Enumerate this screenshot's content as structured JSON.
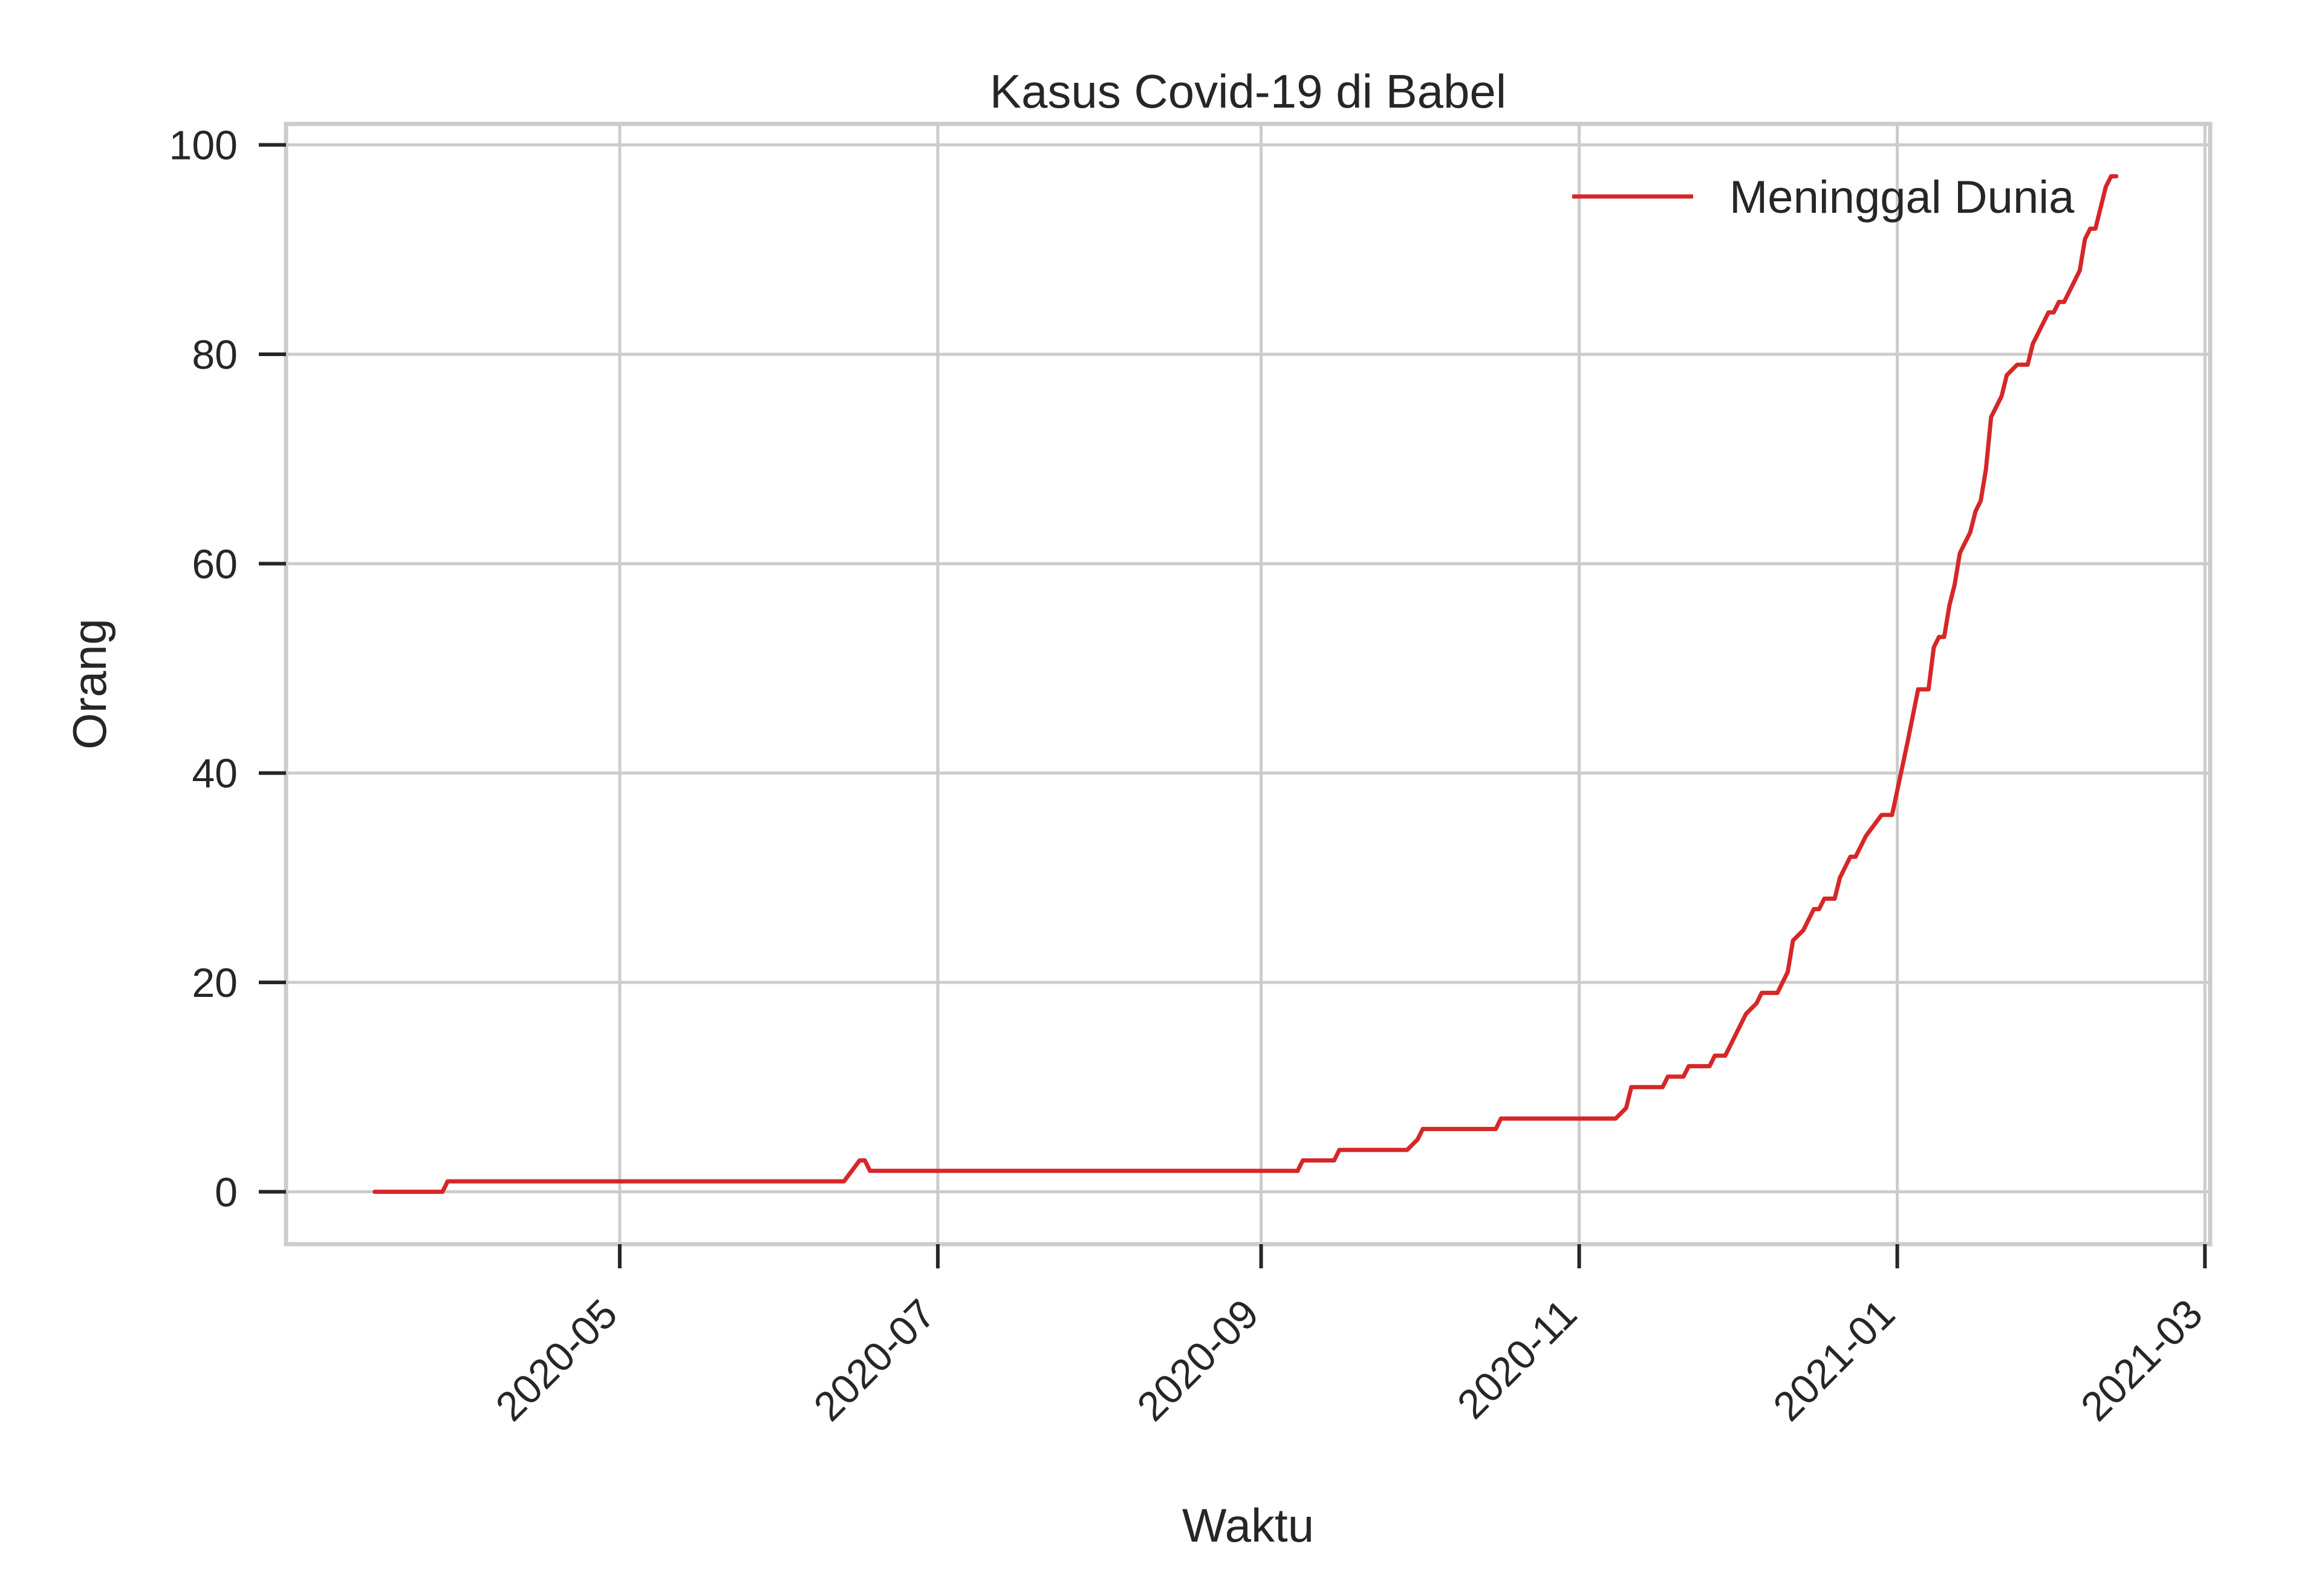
{
  "chart_data": {
    "type": "line",
    "title": "Kasus Covid-19 di Babel",
    "xlabel": "Waktu",
    "ylabel": "Orang",
    "xlim": [
      "2020-02-27",
      "2021-03-02"
    ],
    "ylim": [
      -5,
      102
    ],
    "x_ticks": [
      "2020-05-01",
      "2020-07-01",
      "2020-09-01",
      "2020-11-01",
      "2021-01-01",
      "2021-03-01"
    ],
    "x_tick_labels": [
      "2020-05",
      "2020-07",
      "2020-09",
      "2020-11",
      "2021-01",
      "2021-03"
    ],
    "y_ticks": [
      0,
      20,
      40,
      60,
      80,
      100
    ],
    "grid": true,
    "legend_position": "top-right",
    "series": [
      {
        "name": "Meninggal Dunia",
        "color": "#d62728",
        "points": [
          [
            "2020-03-15",
            0
          ],
          [
            "2020-03-28",
            0
          ],
          [
            "2020-03-29",
            1
          ],
          [
            "2020-06-13",
            1
          ],
          [
            "2020-06-16",
            3
          ],
          [
            "2020-06-17",
            3
          ],
          [
            "2020-06-18",
            2
          ],
          [
            "2020-09-08",
            2
          ],
          [
            "2020-09-09",
            3
          ],
          [
            "2020-09-15",
            3
          ],
          [
            "2020-09-16",
            4
          ],
          [
            "2020-09-29",
            4
          ],
          [
            "2020-10-01",
            5
          ],
          [
            "2020-10-02",
            6
          ],
          [
            "2020-10-16",
            6
          ],
          [
            "2020-10-17",
            7
          ],
          [
            "2020-11-08",
            7
          ],
          [
            "2020-11-10",
            8
          ],
          [
            "2020-11-11",
            10
          ],
          [
            "2020-11-17",
            10
          ],
          [
            "2020-11-18",
            11
          ],
          [
            "2020-11-21",
            11
          ],
          [
            "2020-11-22",
            12
          ],
          [
            "2020-11-26",
            12
          ],
          [
            "2020-11-27",
            13
          ],
          [
            "2020-11-29",
            13
          ],
          [
            "2020-11-30",
            14
          ],
          [
            "2020-12-01",
            15
          ],
          [
            "2020-12-03",
            17
          ],
          [
            "2020-12-05",
            18
          ],
          [
            "2020-12-06",
            19
          ],
          [
            "2020-12-09",
            19
          ],
          [
            "2020-12-10",
            20
          ],
          [
            "2020-12-11",
            21
          ],
          [
            "2020-12-12",
            24
          ],
          [
            "2020-12-14",
            25
          ],
          [
            "2020-12-16",
            27
          ],
          [
            "2020-12-17",
            27
          ],
          [
            "2020-12-18",
            28
          ],
          [
            "2020-12-20",
            28
          ],
          [
            "2020-12-21",
            30
          ],
          [
            "2020-12-23",
            32
          ],
          [
            "2020-12-24",
            32
          ],
          [
            "2020-12-26",
            34
          ],
          [
            "2020-12-29",
            36
          ],
          [
            "2020-12-31",
            36
          ],
          [
            "2021-01-03",
            43
          ],
          [
            "2021-01-05",
            48
          ],
          [
            "2021-01-07",
            48
          ],
          [
            "2021-01-08",
            52
          ],
          [
            "2021-01-09",
            53
          ],
          [
            "2021-01-10",
            53
          ],
          [
            "2021-01-11",
            56
          ],
          [
            "2021-01-12",
            58
          ],
          [
            "2021-01-13",
            61
          ],
          [
            "2021-01-15",
            63
          ],
          [
            "2021-01-16",
            65
          ],
          [
            "2021-01-17",
            66
          ],
          [
            "2021-01-18",
            69
          ],
          [
            "2021-01-19",
            74
          ],
          [
            "2021-01-21",
            76
          ],
          [
            "2021-01-22",
            78
          ],
          [
            "2021-01-24",
            79
          ],
          [
            "2021-01-26",
            79
          ],
          [
            "2021-01-27",
            81
          ],
          [
            "2021-01-29",
            83
          ],
          [
            "2021-01-30",
            84
          ],
          [
            "2021-01-31",
            84
          ],
          [
            "2021-02-01",
            85
          ],
          [
            "2021-02-02",
            85
          ],
          [
            "2021-02-03",
            86
          ],
          [
            "2021-02-05",
            88
          ],
          [
            "2021-02-06",
            91
          ],
          [
            "2021-02-07",
            92
          ],
          [
            "2021-02-08",
            92
          ],
          [
            "2021-02-09",
            94
          ],
          [
            "2021-02-10",
            96
          ],
          [
            "2021-02-11",
            97
          ],
          [
            "2021-02-12",
            97
          ]
        ]
      }
    ]
  }
}
